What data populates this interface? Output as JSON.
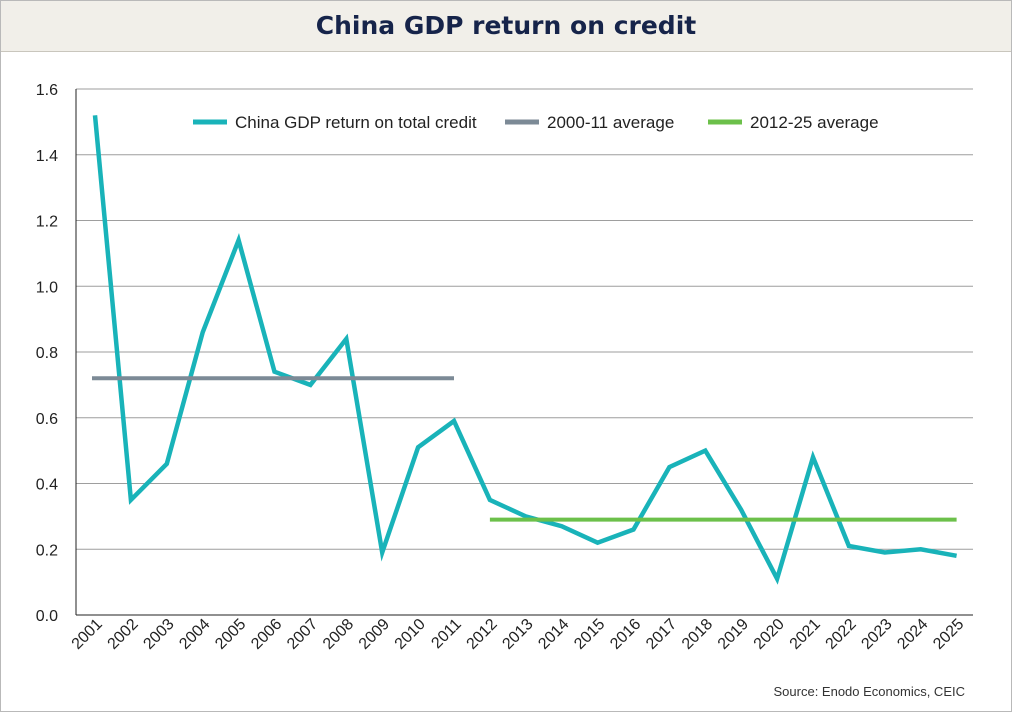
{
  "chart_title": "China GDP return on credit",
  "source": "Source: Enodo Economics, CEIC",
  "colors": {
    "main": "#19b3b9",
    "avg1": "#7c8a96",
    "avg2": "#6cc04a",
    "grid": "#9e9e9e",
    "axis": "#222222"
  },
  "chart_data": {
    "type": "line",
    "title": "China GDP return on credit",
    "xlabel": "",
    "ylabel": "",
    "ylim": [
      0,
      1.6
    ],
    "y_ticks": [
      "0.0",
      "0.2",
      "0.4",
      "0.6",
      "0.8",
      "1.0",
      "1.2",
      "1.4",
      "1.6"
    ],
    "grid": true,
    "legend_position": "top",
    "categories": [
      "2001",
      "2002",
      "2003",
      "2004",
      "2005",
      "2006",
      "2007",
      "2008",
      "2009",
      "2010",
      "2011",
      "2012",
      "2013",
      "2014",
      "2015",
      "2016",
      "2017",
      "2018",
      "2019",
      "2020",
      "2021",
      "2022",
      "2023",
      "2024",
      "2025"
    ],
    "series": [
      {
        "name": "China GDP return on total credit",
        "kind": "line",
        "values": [
          1.52,
          0.35,
          0.46,
          0.86,
          1.14,
          0.74,
          0.7,
          0.84,
          0.19,
          0.51,
          0.59,
          0.35,
          0.3,
          0.27,
          0.22,
          0.26,
          0.45,
          0.5,
          0.32,
          0.11,
          0.48,
          0.21,
          0.19,
          0.2,
          0.18
        ]
      },
      {
        "name": "2000-11 average",
        "kind": "average",
        "value": 0.72,
        "from": "2001",
        "to": "2011"
      },
      {
        "name": "2012-25 average",
        "kind": "average",
        "value": 0.29,
        "from": "2012",
        "to": "2025"
      }
    ]
  }
}
